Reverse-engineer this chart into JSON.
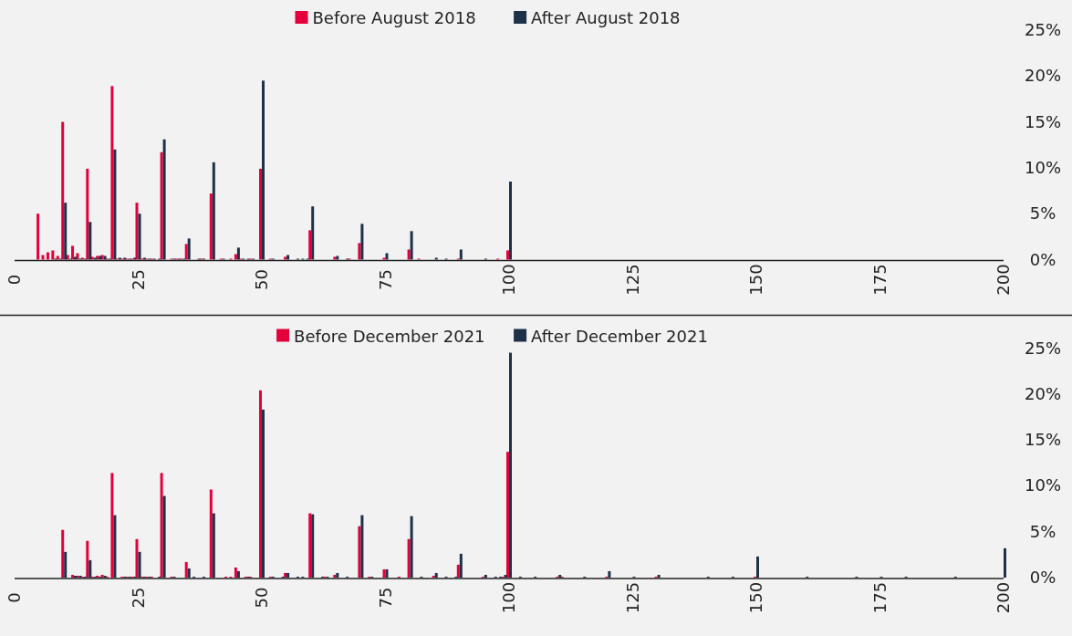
{
  "chart_data": [
    {
      "type": "bar",
      "x": [
        5,
        6,
        7,
        8,
        9,
        10,
        11,
        12,
        13,
        14,
        15,
        16,
        17,
        18,
        19,
        20,
        21,
        22,
        23,
        24,
        25,
        26,
        27,
        28,
        29,
        30,
        32,
        33,
        34,
        35,
        37,
        38,
        40,
        42,
        44,
        45,
        46,
        47,
        48,
        50,
        52,
        55,
        57,
        58,
        59,
        60,
        65,
        67,
        68,
        70,
        75,
        80,
        82,
        85,
        87,
        90,
        95,
        98,
        100
      ],
      "series": [
        {
          "name": "Before August 2018",
          "color": "#e4003b",
          "values": [
            5.0,
            0.5,
            0.8,
            1.0,
            0.4,
            15.0,
            0.5,
            1.5,
            0.7,
            0.2,
            9.9,
            0.3,
            0.4,
            0.5,
            0.1,
            18.9,
            0.1,
            0.1,
            0.1,
            0.1,
            6.2,
            0.1,
            0.1,
            0.1,
            null,
            11.7,
            0.1,
            0.1,
            0.1,
            1.7,
            null,
            0.1,
            7.2,
            0.1,
            0.1,
            0.6,
            0.1,
            null,
            0.1,
            9.9,
            0.1,
            0.3,
            null,
            null,
            null,
            3.2,
            0.3,
            null,
            0.1,
            1.8,
            0.2,
            1.1,
            0.1,
            null,
            null,
            0.1,
            null,
            0.1,
            1.0
          ]
        },
        {
          "name": "After August 2018",
          "color": "#1e3148",
          "values": [
            null,
            null,
            null,
            0.1,
            0.1,
            6.2,
            0.1,
            0.3,
            0.1,
            0.1,
            4.1,
            0.2,
            0.4,
            0.4,
            0.1,
            12.0,
            0.2,
            0.2,
            0.1,
            0.2,
            5.0,
            0.2,
            0.1,
            0.1,
            0.1,
            13.1,
            0.1,
            0.1,
            0.1,
            2.3,
            0.1,
            0.1,
            10.6,
            0.1,
            null,
            1.3,
            0.1,
            0.1,
            0.1,
            19.5,
            0.1,
            0.5,
            0.1,
            0.1,
            0.1,
            5.8,
            0.4,
            0.1,
            null,
            3.9,
            0.7,
            3.1,
            null,
            0.2,
            0.1,
            1.1,
            0.1,
            null,
            8.5
          ]
        }
      ],
      "xlim": [
        0,
        200
      ],
      "xticks": [
        0,
        25,
        50,
        75,
        100,
        125,
        150,
        175,
        200
      ],
      "ylim": [
        0,
        25
      ],
      "yticks": [
        {
          "value": 0,
          "label": "0%"
        },
        {
          "value": 5,
          "label": "5%"
        },
        {
          "value": 10,
          "label": "10%"
        },
        {
          "value": 15,
          "label": "15%"
        },
        {
          "value": 20,
          "label": "20%"
        },
        {
          "value": 25,
          "label": "25%"
        }
      ],
      "grid": false,
      "legend": "top"
    },
    {
      "type": "bar",
      "x": [
        10,
        12,
        13,
        14,
        15,
        16,
        17,
        18,
        19,
        20,
        22,
        23,
        24,
        25,
        26,
        27,
        28,
        29,
        30,
        32,
        35,
        36,
        38,
        40,
        43,
        44,
        45,
        47,
        48,
        50,
        52,
        54,
        55,
        57,
        58,
        60,
        62,
        63,
        65,
        67,
        70,
        72,
        75,
        78,
        80,
        82,
        85,
        87,
        89,
        90,
        95,
        97,
        98,
        99,
        100,
        102,
        105,
        110,
        111,
        115,
        120,
        125,
        130,
        140,
        145,
        150,
        160,
        170,
        175,
        180,
        190,
        200
      ],
      "series": [
        {
          "name": "Before December 2021",
          "color": "#e4003b",
          "values": [
            5.2,
            0.3,
            0.2,
            0.1,
            4.0,
            0.1,
            0.2,
            0.3,
            0.1,
            11.4,
            0.1,
            0.1,
            0.1,
            4.2,
            0.1,
            0.1,
            0.1,
            null,
            11.4,
            0.1,
            1.7,
            null,
            null,
            9.6,
            0.1,
            0.1,
            1.1,
            0.1,
            0.1,
            20.4,
            0.1,
            null,
            0.5,
            null,
            null,
            7.0,
            null,
            0.1,
            0.3,
            null,
            5.6,
            0.1,
            0.9,
            0.1,
            4.2,
            null,
            0.2,
            null,
            null,
            1.4,
            0.1,
            null,
            null,
            0.1,
            13.7,
            null,
            null,
            0.1,
            0.1,
            null,
            0.1,
            null,
            0.1,
            null,
            null,
            0.1,
            null,
            null,
            null,
            null,
            null,
            null
          ]
        },
        {
          "name": "After December 2021",
          "color": "#1e3148",
          "values": [
            2.8,
            0.2,
            0.2,
            0.1,
            1.9,
            0.1,
            0.1,
            0.2,
            null,
            6.8,
            0.1,
            0.1,
            0.1,
            2.8,
            0.1,
            0.1,
            null,
            0.1,
            8.9,
            0.1,
            1.0,
            0.1,
            0.1,
            7.0,
            null,
            null,
            0.7,
            0.1,
            null,
            18.3,
            0.1,
            0.1,
            0.5,
            0.1,
            0.1,
            6.9,
            0.1,
            0.1,
            0.5,
            0.1,
            6.8,
            0.1,
            0.9,
            null,
            6.7,
            0.1,
            0.5,
            0.1,
            0.1,
            2.6,
            0.3,
            0.1,
            0.1,
            0.3,
            24.5,
            0.1,
            0.1,
            0.3,
            null,
            0.1,
            0.7,
            0.1,
            0.3,
            0.1,
            0.1,
            2.3,
            0.1,
            0.1,
            0.1,
            0.1,
            0.1,
            3.2
          ]
        }
      ],
      "xlim": [
        0,
        200
      ],
      "xticks": [
        0,
        25,
        50,
        75,
        100,
        125,
        150,
        175,
        200
      ],
      "ylim": [
        0,
        25
      ],
      "yticks": [
        {
          "value": 0,
          "label": "0%"
        },
        {
          "value": 5,
          "label": "5%"
        },
        {
          "value": 10,
          "label": "10%"
        },
        {
          "value": 15,
          "label": "15%"
        },
        {
          "value": 20,
          "label": "20%"
        },
        {
          "value": 25,
          "label": "25%"
        }
      ],
      "grid": false,
      "legend": "top"
    }
  ]
}
